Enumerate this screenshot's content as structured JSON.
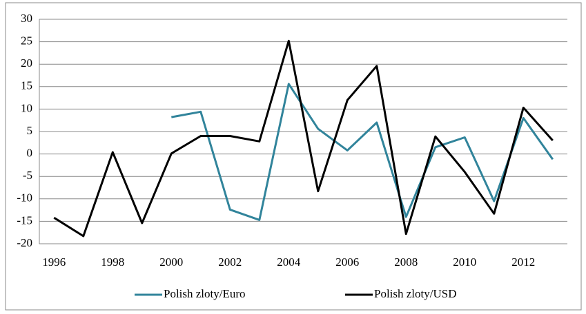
{
  "chart_data": {
    "type": "line",
    "categories": [
      "1996",
      null,
      "1998",
      null,
      "2000",
      null,
      "2002",
      null,
      "2004",
      null,
      "2006",
      null,
      "2008",
      null,
      "2010",
      null,
      "2012",
      null
    ],
    "series": [
      {
        "name": "Polish zloty/Euro",
        "color": "#31849b",
        "values": [
          null,
          null,
          null,
          null,
          8.2,
          9.4,
          -12.4,
          -14.7,
          15.6,
          5.6,
          0.8,
          7,
          -14,
          1.5,
          3.7,
          -10.5,
          8,
          -1.2
        ]
      },
      {
        "name": "Polish zloty/USD",
        "color": "#000000",
        "values": [
          -14.2,
          -18.3,
          0.4,
          -15.4,
          0.1,
          4,
          4,
          2.8,
          25.2,
          -8.3,
          12,
          19.6,
          -17.8,
          3.9,
          -4,
          -13.3,
          10.3,
          3
        ]
      }
    ],
    "ylim": [
      -20,
      30
    ],
    "yticks": [
      -20,
      -15,
      -10,
      -5,
      0,
      5,
      10,
      15,
      20,
      25,
      30
    ],
    "grid": true,
    "legend": "bottom"
  }
}
